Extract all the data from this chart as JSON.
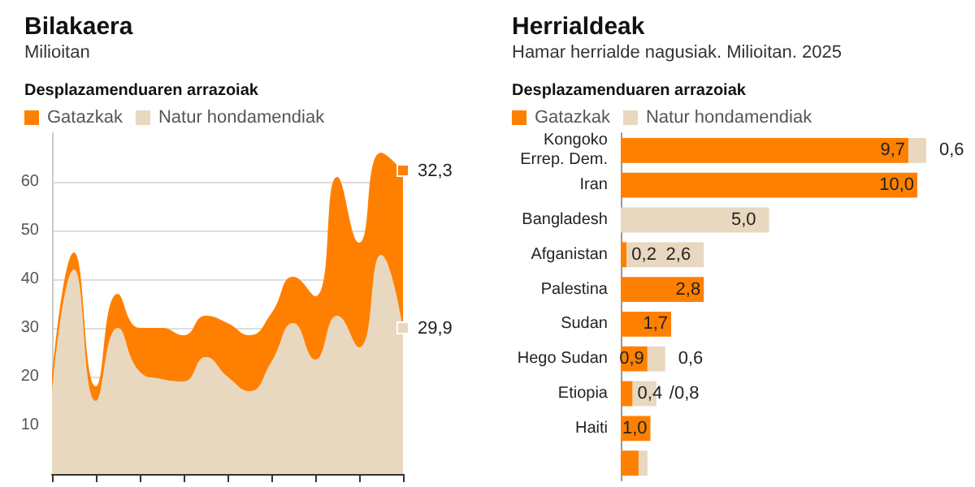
{
  "chart_data": [
    {
      "type": "area",
      "title": "Bilakaera",
      "subtitle": "Milioitan",
      "legend_title": "Desplazamenduaren arrazoiak",
      "stacked": true,
      "legend": "top left",
      "grid": "y",
      "categories": [
        null,
        null,
        null,
        null,
        null,
        null,
        null,
        null,
        null,
        null,
        null,
        null,
        null,
        null,
        null,
        null,
        null
      ],
      "ylim": [
        0,
        70
      ],
      "yticks": [
        10,
        20,
        30,
        40,
        50,
        60
      ],
      "series": [
        {
          "name": "Natur hondamendiak",
          "color": "#e8d8bf",
          "values": [
            17,
            42,
            15,
            30,
            21,
            19.5,
            19,
            24,
            20,
            17,
            23,
            31,
            23.5,
            32.5,
            26,
            45,
            29.9
          ],
          "value_labels": [
            null,
            null,
            null,
            null,
            null,
            null,
            null,
            null,
            null,
            null,
            null,
            null,
            null,
            null,
            null,
            null,
            "29,9"
          ]
        },
        {
          "name": "Gatazkak",
          "color": "#ff8000",
          "values": [
            3,
            3.5,
            3,
            7,
            9,
            10.5,
            9.5,
            8.5,
            11,
            11.5,
            10,
            9.5,
            13,
            28.5,
            21.5,
            21,
            32.3
          ],
          "value_labels": [
            null,
            null,
            null,
            null,
            null,
            null,
            null,
            null,
            null,
            null,
            null,
            null,
            null,
            null,
            null,
            null,
            "32,3"
          ]
        }
      ]
    },
    {
      "type": "bar",
      "orientation": "horizontal",
      "stacked": true,
      "title": "Herrialdeak",
      "subtitle": "Hamar herrialde nagusiak. Milioitan. 2025",
      "legend_title": "Desplazamenduaren arrazoiak",
      "legend": "top left",
      "tick_labels": "y",
      "categories": [
        "Kongoko\nErrep. Dem.",
        "Iran",
        "Bangladesh",
        "Afganistan",
        "Palestina",
        "Sudan",
        "Hego Sudan",
        "Etiopia",
        "Haiti",
        null
      ],
      "series": [
        {
          "name": "Gatazkak",
          "color": "#ff8000",
          "values": [
            9.7,
            10.0,
            null,
            0.2,
            2.8,
            1.7,
            0.9,
            0.4,
            1.0,
            0.6
          ],
          "value_labels": [
            "9,7",
            "10,0",
            null,
            "0,2",
            "2,8",
            "1,7",
            "0,9",
            "0,4",
            "1,0",
            null
          ]
        },
        {
          "name": "Natur hondamendiak",
          "color": "#e8d8bf",
          "values": [
            0.6,
            null,
            5.0,
            2.6,
            null,
            null,
            0.6,
            0.8,
            null,
            0.3
          ],
          "value_labels": [
            "0,6",
            null,
            "5,0",
            "2,6",
            null,
            null,
            "0,6",
            "/0,8",
            null,
            null
          ]
        }
      ]
    }
  ]
}
